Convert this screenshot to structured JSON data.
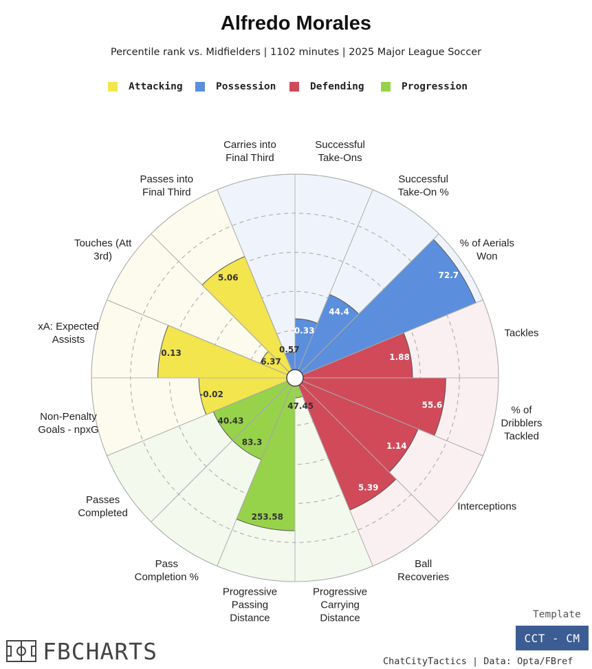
{
  "title": "Alfredo Morales",
  "subtitle": "Percentile rank vs. Midfielders | 1102 minutes | 2025 Major League Soccer",
  "legend": [
    {
      "label": "Attacking",
      "color": "#f3e54d"
    },
    {
      "label": "Possession",
      "color": "#5b8fde"
    },
    {
      "label": "Defending",
      "color": "#d14a5a"
    },
    {
      "label": "Progression",
      "color": "#97d34a"
    }
  ],
  "chart_data": {
    "type": "polar-bar",
    "value_scale": "percentile",
    "rmax": 100,
    "gridlines": [
      20,
      40,
      60,
      80,
      100
    ],
    "categories": [
      {
        "label": "Successful Take-Ons",
        "group": "Possession",
        "value": "0.33",
        "percentile": 26
      },
      {
        "label": "Successful Take-On %",
        "group": "Possession",
        "value": "44.4",
        "percentile": 42
      },
      {
        "label": "% of Aerials Won",
        "group": "Possession",
        "value": "72.7",
        "percentile": 96
      },
      {
        "label": "Tackles",
        "group": "Defending",
        "value": "1.88",
        "percentile": 56
      },
      {
        "label": "% of Dribblers Tackled",
        "group": "Defending",
        "value": "55.6",
        "percentile": 73
      },
      {
        "label": "Interceptions",
        "group": "Defending",
        "value": "1.14",
        "percentile": 64
      },
      {
        "label": "Ball Recoveries",
        "group": "Defending",
        "value": "5.39",
        "percentile": 69
      },
      {
        "label": "Progressive Carrying Distance",
        "group": "Progression",
        "value": "47.45",
        "percentile": 6
      },
      {
        "label": "Progressive Passing Distance",
        "group": "Progression",
        "value": "253.58",
        "percentile": 74
      },
      {
        "label": "Pass Completion %",
        "group": "Progression",
        "value": "83.3",
        "percentile": 41
      },
      {
        "label": "Passes Completed",
        "group": "Progression",
        "value": "40.43",
        "percentile": 41
      },
      {
        "label": "Non-Penalty Goals - npxG",
        "group": "Attacking",
        "value": "-0.02",
        "percentile": 45
      },
      {
        "label": "xA: Expected Assists",
        "group": "Attacking",
        "value": "0.13",
        "percentile": 66
      },
      {
        "label": "Touches (Att 3rd)",
        "group": "Attacking",
        "value": "6.37",
        "percentile": 15
      },
      {
        "label": "Passes into Final Third",
        "group": "Attacking",
        "value": "5.06",
        "percentile": 63
      },
      {
        "label": "Carries into Final Third",
        "group": "Possession",
        "value": "0.57",
        "percentile": 9
      }
    ]
  },
  "footer": {
    "template_label": "Template",
    "template_badge": "CCT - CM",
    "credit": "ChatCityTactics | Data: Opta/FBref",
    "brand": "FBCHARTS"
  }
}
